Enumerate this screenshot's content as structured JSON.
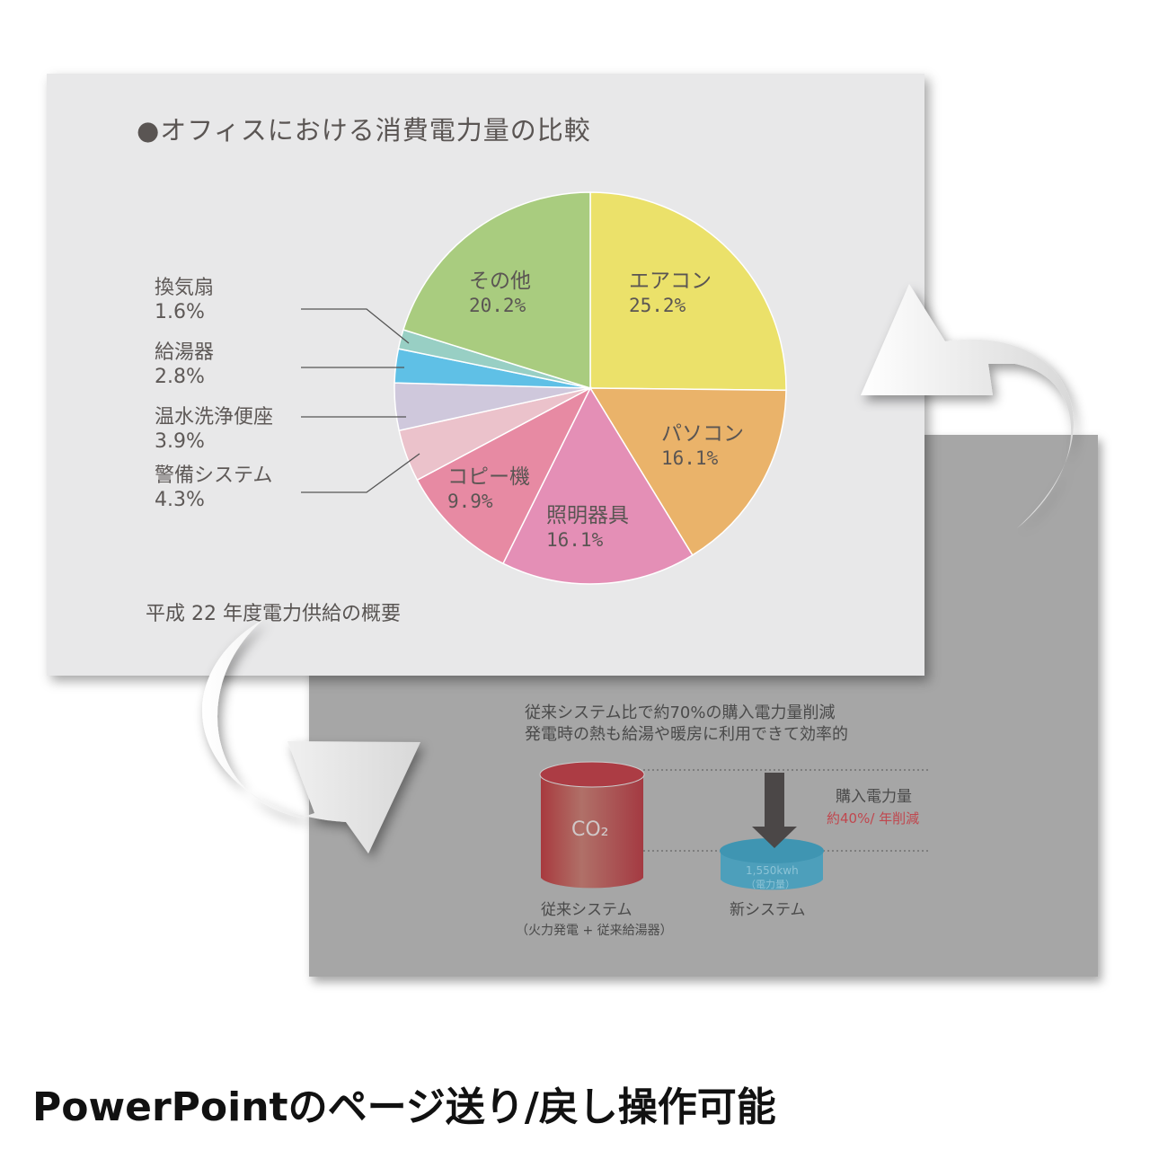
{
  "back_slide": {
    "line1": "従来システム比で約70%の購入電力量削減",
    "line2": "発電時の熱も給湯や暖房に利用できて効率的",
    "co2": "CO₂",
    "arrow_label": "購入電力量",
    "arrow_value": "約40%/ 年削減",
    "arrow_value_color": "#c0474e",
    "new_value": "1,550kwh",
    "new_unit": "（電力量）",
    "old_label": "従来システム",
    "old_sub": "（火力発電 + 従来給湯器）",
    "new_label": "新システム"
  },
  "front_slide": {
    "title": "●オフィスにおける消費電力量の比較",
    "footer": "平成 22 年度電力供給の概要"
  },
  "caption": "PowerPointのページ送り/戻し操作可能",
  "chart_data": {
    "type": "pie",
    "title": "●オフィスにおける消費電力量の比較",
    "start": "top, clockwise",
    "slices": [
      {
        "label": "エアコン",
        "value": 25.2,
        "text": "25.2%",
        "color": "#ebe16a"
      },
      {
        "label": "パソコン",
        "value": 16.1,
        "text": "16.1%",
        "color": "#eab36a"
      },
      {
        "label": "照明器具",
        "value": 16.1,
        "text": "16.1%",
        "color": "#e48fb6"
      },
      {
        "label": "コピー機",
        "value": 9.9,
        "text": "9.9%",
        "color": "#e78aa3"
      },
      {
        "label": "警備システム",
        "value": 4.3,
        "text": "4.3%",
        "color": "#ebc2cb"
      },
      {
        "label": "温水洗浄便座",
        "value": 3.9,
        "text": "3.9%",
        "color": "#cfc8dc"
      },
      {
        "label": "給湯器",
        "value": 2.8,
        "text": "2.8%",
        "color": "#5fc0e6"
      },
      {
        "label": "換気扇",
        "value": 1.6,
        "text": "1.6%",
        "color": "#98cfc4"
      },
      {
        "label": "その他",
        "value": 20.2,
        "text": "20.2%",
        "color": "#a9cc7f"
      }
    ]
  }
}
